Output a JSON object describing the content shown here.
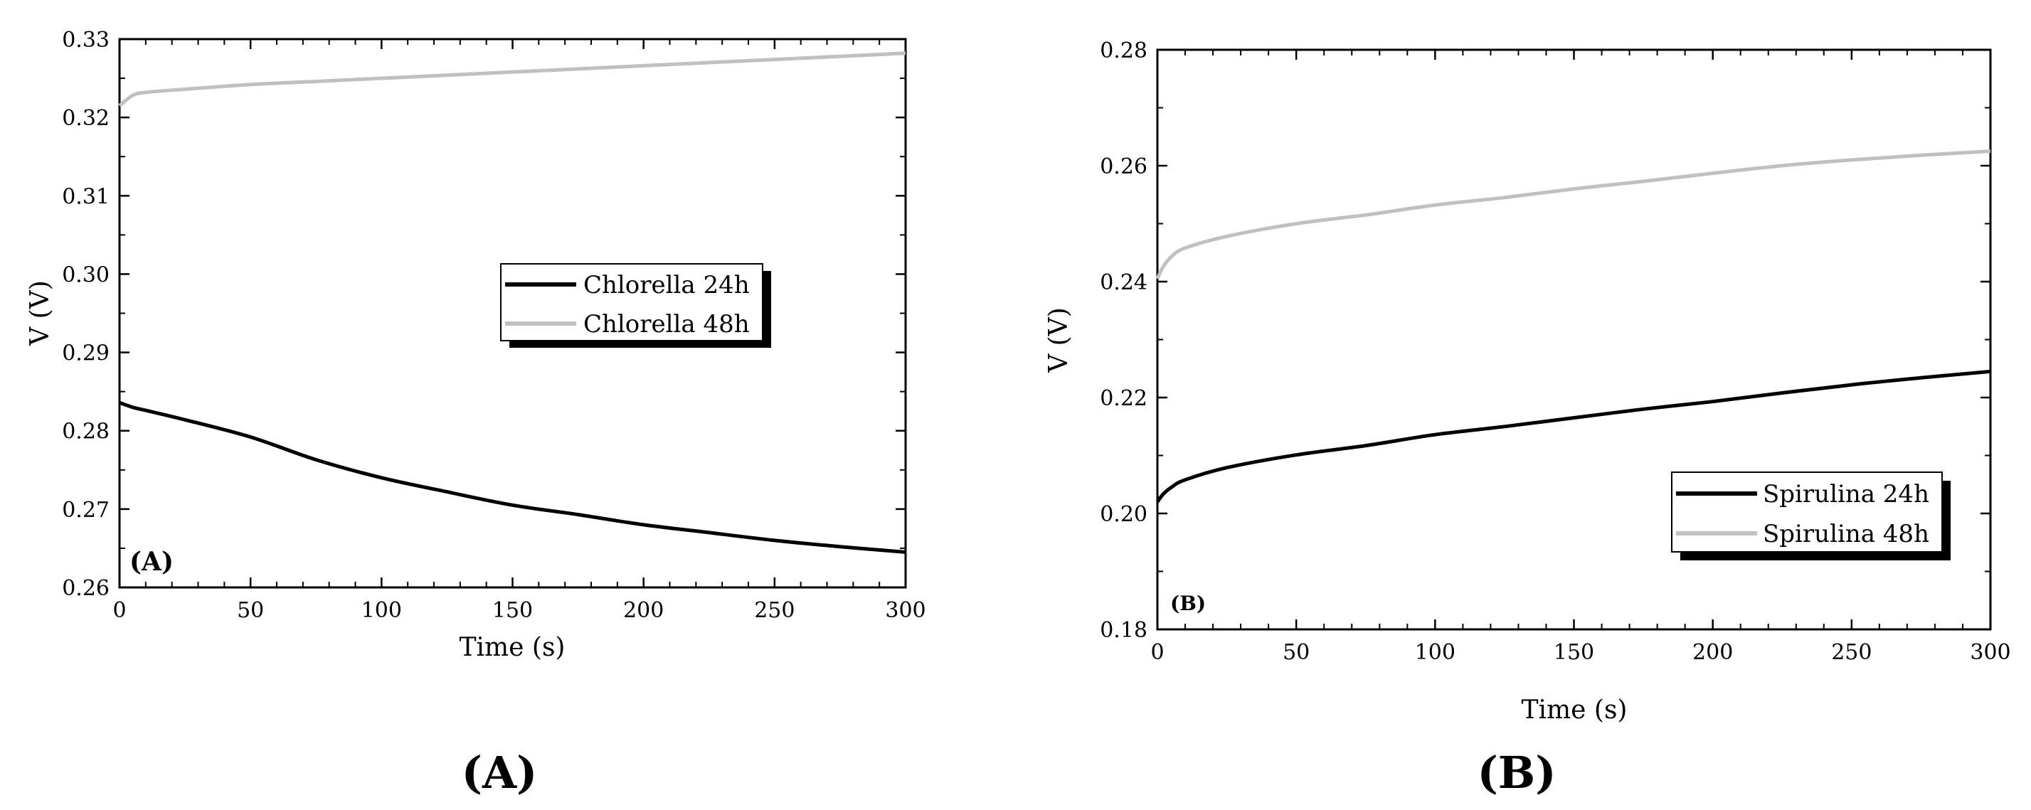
{
  "colors": {
    "dark_series": "#000000",
    "light_series": "#c0c0c0"
  },
  "captions": [
    "(A)",
    "(B)"
  ],
  "chart_data": [
    {
      "type": "line",
      "panel_label": "(A)",
      "xlabel": "Time (s)",
      "ylabel": "V (V)",
      "xlim": [
        0,
        300
      ],
      "ylim": [
        0.26,
        0.33
      ],
      "x_ticks": [
        0,
        50,
        100,
        150,
        200,
        250,
        300
      ],
      "x_tick_labels": [
        "0",
        "50",
        "100",
        "150",
        "200",
        "250",
        "300"
      ],
      "y_ticks": [
        0.26,
        0.27,
        0.28,
        0.29,
        0.3,
        0.31,
        0.32,
        0.33
      ],
      "y_tick_labels": [
        "0.26",
        "0.27",
        "0.28",
        "0.29",
        "0.30",
        "0.31",
        "0.32",
        "0.33"
      ],
      "grid": false,
      "legend_position": "center-right",
      "x": [
        0,
        5,
        10,
        25,
        50,
        75,
        100,
        125,
        150,
        175,
        200,
        225,
        250,
        275,
        300
      ],
      "series": [
        {
          "name": "Chlorella 24h",
          "color": "#000000",
          "values": [
            0.2836,
            0.283,
            0.2826,
            0.2814,
            0.2792,
            0.2763,
            0.274,
            0.2722,
            0.2705,
            0.2693,
            0.268,
            0.267,
            0.266,
            0.2652,
            0.2645
          ]
        },
        {
          "name": "Chlorella 48h",
          "color": "#c0c0c0",
          "values": [
            0.3215,
            0.3228,
            0.3232,
            0.3236,
            0.3242,
            0.3246,
            0.325,
            0.3254,
            0.3258,
            0.3262,
            0.3266,
            0.327,
            0.3274,
            0.3278,
            0.3282
          ]
        }
      ]
    },
    {
      "type": "line",
      "panel_label": "(B)",
      "xlabel": "Time (s)",
      "ylabel": "V (V)",
      "xlim": [
        0,
        300
      ],
      "ylim": [
        0.18,
        0.28
      ],
      "x_ticks": [
        0,
        50,
        100,
        150,
        200,
        250,
        300
      ],
      "x_tick_labels": [
        "0",
        "50",
        "100",
        "150",
        "200",
        "250",
        "300"
      ],
      "y_ticks": [
        0.18,
        0.2,
        0.22,
        0.24,
        0.26,
        0.28
      ],
      "y_tick_labels": [
        "0.18",
        "0.20",
        "0.22",
        "0.24",
        "0.26",
        "0.28"
      ],
      "grid": false,
      "legend_position": "bottom-right",
      "x": [
        0,
        2,
        5,
        10,
        25,
        50,
        75,
        100,
        125,
        150,
        175,
        200,
        225,
        250,
        275,
        300
      ],
      "series": [
        {
          "name": "Spirulina 24h",
          "color": "#000000",
          "values": [
            0.202,
            0.2033,
            0.2045,
            0.2058,
            0.2079,
            0.2101,
            0.2117,
            0.2136,
            0.215,
            0.2165,
            0.218,
            0.2193,
            0.2208,
            0.2222,
            0.2234,
            0.2245
          ]
        },
        {
          "name": "Spirulina 48h",
          "color": "#c0c0c0",
          "values": [
            0.2405,
            0.2425,
            0.2443,
            0.2458,
            0.2478,
            0.25,
            0.2515,
            0.2532,
            0.2545,
            0.256,
            0.2573,
            0.2587,
            0.26,
            0.261,
            0.2618,
            0.2625
          ]
        }
      ]
    }
  ]
}
